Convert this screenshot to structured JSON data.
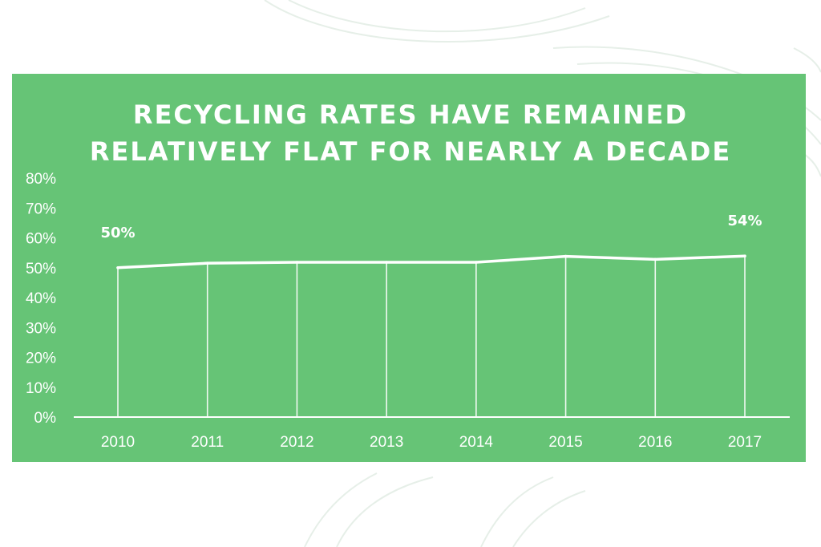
{
  "chart_data": {
    "type": "line",
    "title_lines": [
      "RECYCLING RATES HAVE REMAINED",
      "RELATIVELY FLAT FOR NEARLY A DECADE"
    ],
    "categories": [
      "2010",
      "2011",
      "2012",
      "2013",
      "2014",
      "2015",
      "2016",
      "2017"
    ],
    "values": [
      50,
      51.5,
      51.8,
      51.8,
      51.8,
      53.8,
      52.8,
      53.9
    ],
    "ylim": [
      0,
      80
    ],
    "yticks": [
      "0%",
      "10%",
      "20%",
      "30%",
      "40%",
      "50%",
      "60%",
      "70%",
      "80%"
    ],
    "data_labels": [
      {
        "index": 0,
        "text": "50%"
      },
      {
        "index": 7,
        "text": "54%"
      }
    ],
    "xlabel": "",
    "ylabel": "",
    "grid": false,
    "drop_lines": true
  },
  "colors": {
    "panel": "#66c476",
    "line": "#ffffff",
    "text": "#ffffff",
    "decoration": "#e6efe8"
  }
}
